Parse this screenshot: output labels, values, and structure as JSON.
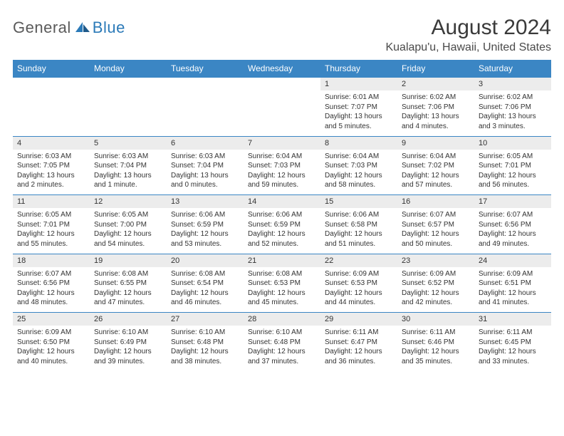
{
  "brand": {
    "part1": "General",
    "part2": "Blue",
    "general_color": "#5a5a5a",
    "blue_color": "#2b7ab8",
    "icon_color": "#2b7ab8"
  },
  "header": {
    "month_title": "August 2024",
    "location": "Kualapu'u, Hawaii, United States",
    "title_color": "#3a3a3a"
  },
  "colors": {
    "header_bg": "#3b86c4",
    "header_text": "#ffffff",
    "daynum_bg": "#ececec",
    "row_divider": "#3b86c4",
    "body_text": "#333333",
    "page_bg": "#ffffff"
  },
  "typography": {
    "month_title_fontsize": 30,
    "location_fontsize": 16,
    "weekday_fontsize": 12,
    "daynum_fontsize": 11,
    "info_fontsize": 10,
    "logo_fontsize": 22
  },
  "weekdays": [
    "Sunday",
    "Monday",
    "Tuesday",
    "Wednesday",
    "Thursday",
    "Friday",
    "Saturday"
  ],
  "weeks": [
    [
      null,
      null,
      null,
      null,
      {
        "day": "1",
        "sunrise": "Sunrise: 6:01 AM",
        "sunset": "Sunset: 7:07 PM",
        "daylight1": "Daylight: 13 hours",
        "daylight2": "and 5 minutes."
      },
      {
        "day": "2",
        "sunrise": "Sunrise: 6:02 AM",
        "sunset": "Sunset: 7:06 PM",
        "daylight1": "Daylight: 13 hours",
        "daylight2": "and 4 minutes."
      },
      {
        "day": "3",
        "sunrise": "Sunrise: 6:02 AM",
        "sunset": "Sunset: 7:06 PM",
        "daylight1": "Daylight: 13 hours",
        "daylight2": "and 3 minutes."
      }
    ],
    [
      {
        "day": "4",
        "sunrise": "Sunrise: 6:03 AM",
        "sunset": "Sunset: 7:05 PM",
        "daylight1": "Daylight: 13 hours",
        "daylight2": "and 2 minutes."
      },
      {
        "day": "5",
        "sunrise": "Sunrise: 6:03 AM",
        "sunset": "Sunset: 7:04 PM",
        "daylight1": "Daylight: 13 hours",
        "daylight2": "and 1 minute."
      },
      {
        "day": "6",
        "sunrise": "Sunrise: 6:03 AM",
        "sunset": "Sunset: 7:04 PM",
        "daylight1": "Daylight: 13 hours",
        "daylight2": "and 0 minutes."
      },
      {
        "day": "7",
        "sunrise": "Sunrise: 6:04 AM",
        "sunset": "Sunset: 7:03 PM",
        "daylight1": "Daylight: 12 hours",
        "daylight2": "and 59 minutes."
      },
      {
        "day": "8",
        "sunrise": "Sunrise: 6:04 AM",
        "sunset": "Sunset: 7:03 PM",
        "daylight1": "Daylight: 12 hours",
        "daylight2": "and 58 minutes."
      },
      {
        "day": "9",
        "sunrise": "Sunrise: 6:04 AM",
        "sunset": "Sunset: 7:02 PM",
        "daylight1": "Daylight: 12 hours",
        "daylight2": "and 57 minutes."
      },
      {
        "day": "10",
        "sunrise": "Sunrise: 6:05 AM",
        "sunset": "Sunset: 7:01 PM",
        "daylight1": "Daylight: 12 hours",
        "daylight2": "and 56 minutes."
      }
    ],
    [
      {
        "day": "11",
        "sunrise": "Sunrise: 6:05 AM",
        "sunset": "Sunset: 7:01 PM",
        "daylight1": "Daylight: 12 hours",
        "daylight2": "and 55 minutes."
      },
      {
        "day": "12",
        "sunrise": "Sunrise: 6:05 AM",
        "sunset": "Sunset: 7:00 PM",
        "daylight1": "Daylight: 12 hours",
        "daylight2": "and 54 minutes."
      },
      {
        "day": "13",
        "sunrise": "Sunrise: 6:06 AM",
        "sunset": "Sunset: 6:59 PM",
        "daylight1": "Daylight: 12 hours",
        "daylight2": "and 53 minutes."
      },
      {
        "day": "14",
        "sunrise": "Sunrise: 6:06 AM",
        "sunset": "Sunset: 6:59 PM",
        "daylight1": "Daylight: 12 hours",
        "daylight2": "and 52 minutes."
      },
      {
        "day": "15",
        "sunrise": "Sunrise: 6:06 AM",
        "sunset": "Sunset: 6:58 PM",
        "daylight1": "Daylight: 12 hours",
        "daylight2": "and 51 minutes."
      },
      {
        "day": "16",
        "sunrise": "Sunrise: 6:07 AM",
        "sunset": "Sunset: 6:57 PM",
        "daylight1": "Daylight: 12 hours",
        "daylight2": "and 50 minutes."
      },
      {
        "day": "17",
        "sunrise": "Sunrise: 6:07 AM",
        "sunset": "Sunset: 6:56 PM",
        "daylight1": "Daylight: 12 hours",
        "daylight2": "and 49 minutes."
      }
    ],
    [
      {
        "day": "18",
        "sunrise": "Sunrise: 6:07 AM",
        "sunset": "Sunset: 6:56 PM",
        "daylight1": "Daylight: 12 hours",
        "daylight2": "and 48 minutes."
      },
      {
        "day": "19",
        "sunrise": "Sunrise: 6:08 AM",
        "sunset": "Sunset: 6:55 PM",
        "daylight1": "Daylight: 12 hours",
        "daylight2": "and 47 minutes."
      },
      {
        "day": "20",
        "sunrise": "Sunrise: 6:08 AM",
        "sunset": "Sunset: 6:54 PM",
        "daylight1": "Daylight: 12 hours",
        "daylight2": "and 46 minutes."
      },
      {
        "day": "21",
        "sunrise": "Sunrise: 6:08 AM",
        "sunset": "Sunset: 6:53 PM",
        "daylight1": "Daylight: 12 hours",
        "daylight2": "and 45 minutes."
      },
      {
        "day": "22",
        "sunrise": "Sunrise: 6:09 AM",
        "sunset": "Sunset: 6:53 PM",
        "daylight1": "Daylight: 12 hours",
        "daylight2": "and 44 minutes."
      },
      {
        "day": "23",
        "sunrise": "Sunrise: 6:09 AM",
        "sunset": "Sunset: 6:52 PM",
        "daylight1": "Daylight: 12 hours",
        "daylight2": "and 42 minutes."
      },
      {
        "day": "24",
        "sunrise": "Sunrise: 6:09 AM",
        "sunset": "Sunset: 6:51 PM",
        "daylight1": "Daylight: 12 hours",
        "daylight2": "and 41 minutes."
      }
    ],
    [
      {
        "day": "25",
        "sunrise": "Sunrise: 6:09 AM",
        "sunset": "Sunset: 6:50 PM",
        "daylight1": "Daylight: 12 hours",
        "daylight2": "and 40 minutes."
      },
      {
        "day": "26",
        "sunrise": "Sunrise: 6:10 AM",
        "sunset": "Sunset: 6:49 PM",
        "daylight1": "Daylight: 12 hours",
        "daylight2": "and 39 minutes."
      },
      {
        "day": "27",
        "sunrise": "Sunrise: 6:10 AM",
        "sunset": "Sunset: 6:48 PM",
        "daylight1": "Daylight: 12 hours",
        "daylight2": "and 38 minutes."
      },
      {
        "day": "28",
        "sunrise": "Sunrise: 6:10 AM",
        "sunset": "Sunset: 6:48 PM",
        "daylight1": "Daylight: 12 hours",
        "daylight2": "and 37 minutes."
      },
      {
        "day": "29",
        "sunrise": "Sunrise: 6:11 AM",
        "sunset": "Sunset: 6:47 PM",
        "daylight1": "Daylight: 12 hours",
        "daylight2": "and 36 minutes."
      },
      {
        "day": "30",
        "sunrise": "Sunrise: 6:11 AM",
        "sunset": "Sunset: 6:46 PM",
        "daylight1": "Daylight: 12 hours",
        "daylight2": "and 35 minutes."
      },
      {
        "day": "31",
        "sunrise": "Sunrise: 6:11 AM",
        "sunset": "Sunset: 6:45 PM",
        "daylight1": "Daylight: 12 hours",
        "daylight2": "and 33 minutes."
      }
    ]
  ]
}
